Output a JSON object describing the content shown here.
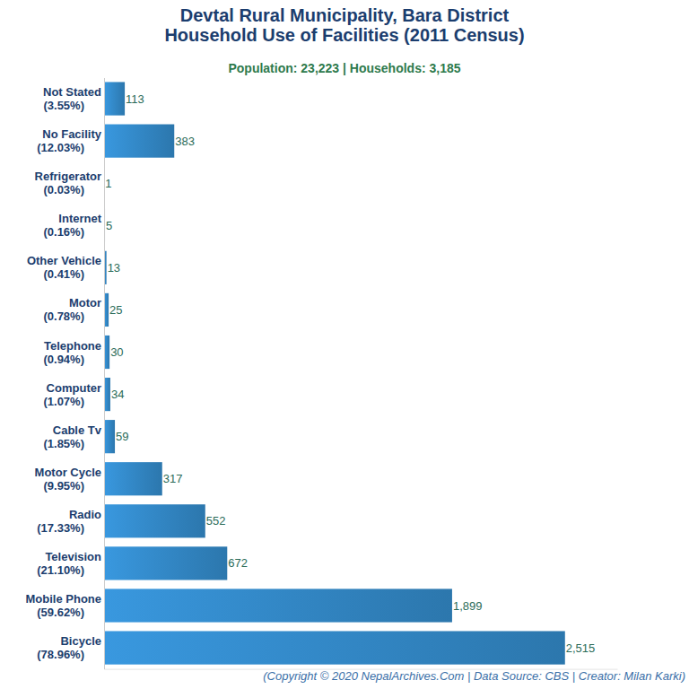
{
  "chart_data": {
    "type": "bar",
    "orientation": "horizontal",
    "title": "Devtal Rural Municipality, Bara District\nHousehold Use of Facilities (2011 Census)",
    "subtitle": "Population: 23,223 | Households: 3,185",
    "annotation": "(Copyright © 2020 NepalArchives.Com | Data Source: CBS | Creator: Milan Karki)",
    "categories": [
      "Not Stated (3.55%)",
      "No Facility (12.03%)",
      "Refrigerator (0.03%)",
      "Internet (0.16%)",
      "Other Vehicle (0.41%)",
      "Motor (0.78%)",
      "Telephone (0.94%)",
      "Computer (1.07%)",
      "Cable Tv (1.85%)",
      "Motor Cycle (9.95%)",
      "Radio (17.33%)",
      "Television (21.10%)",
      "Mobile Phone (59.62%)",
      "Bicycle (78.96%)"
    ],
    "values": [
      113,
      383,
      1,
      5,
      13,
      25,
      30,
      34,
      59,
      317,
      552,
      672,
      1899,
      2515
    ],
    "value_labels": [
      "113",
      "383",
      "1",
      "5",
      "13",
      "25",
      "30",
      "34",
      "59",
      "317",
      "552",
      "672",
      "1,899",
      "2,515"
    ],
    "color": "#3389c8",
    "xlim": [
      0,
      2800
    ],
    "data_labels": true,
    "tick_labels": "y",
    "grid": false
  }
}
